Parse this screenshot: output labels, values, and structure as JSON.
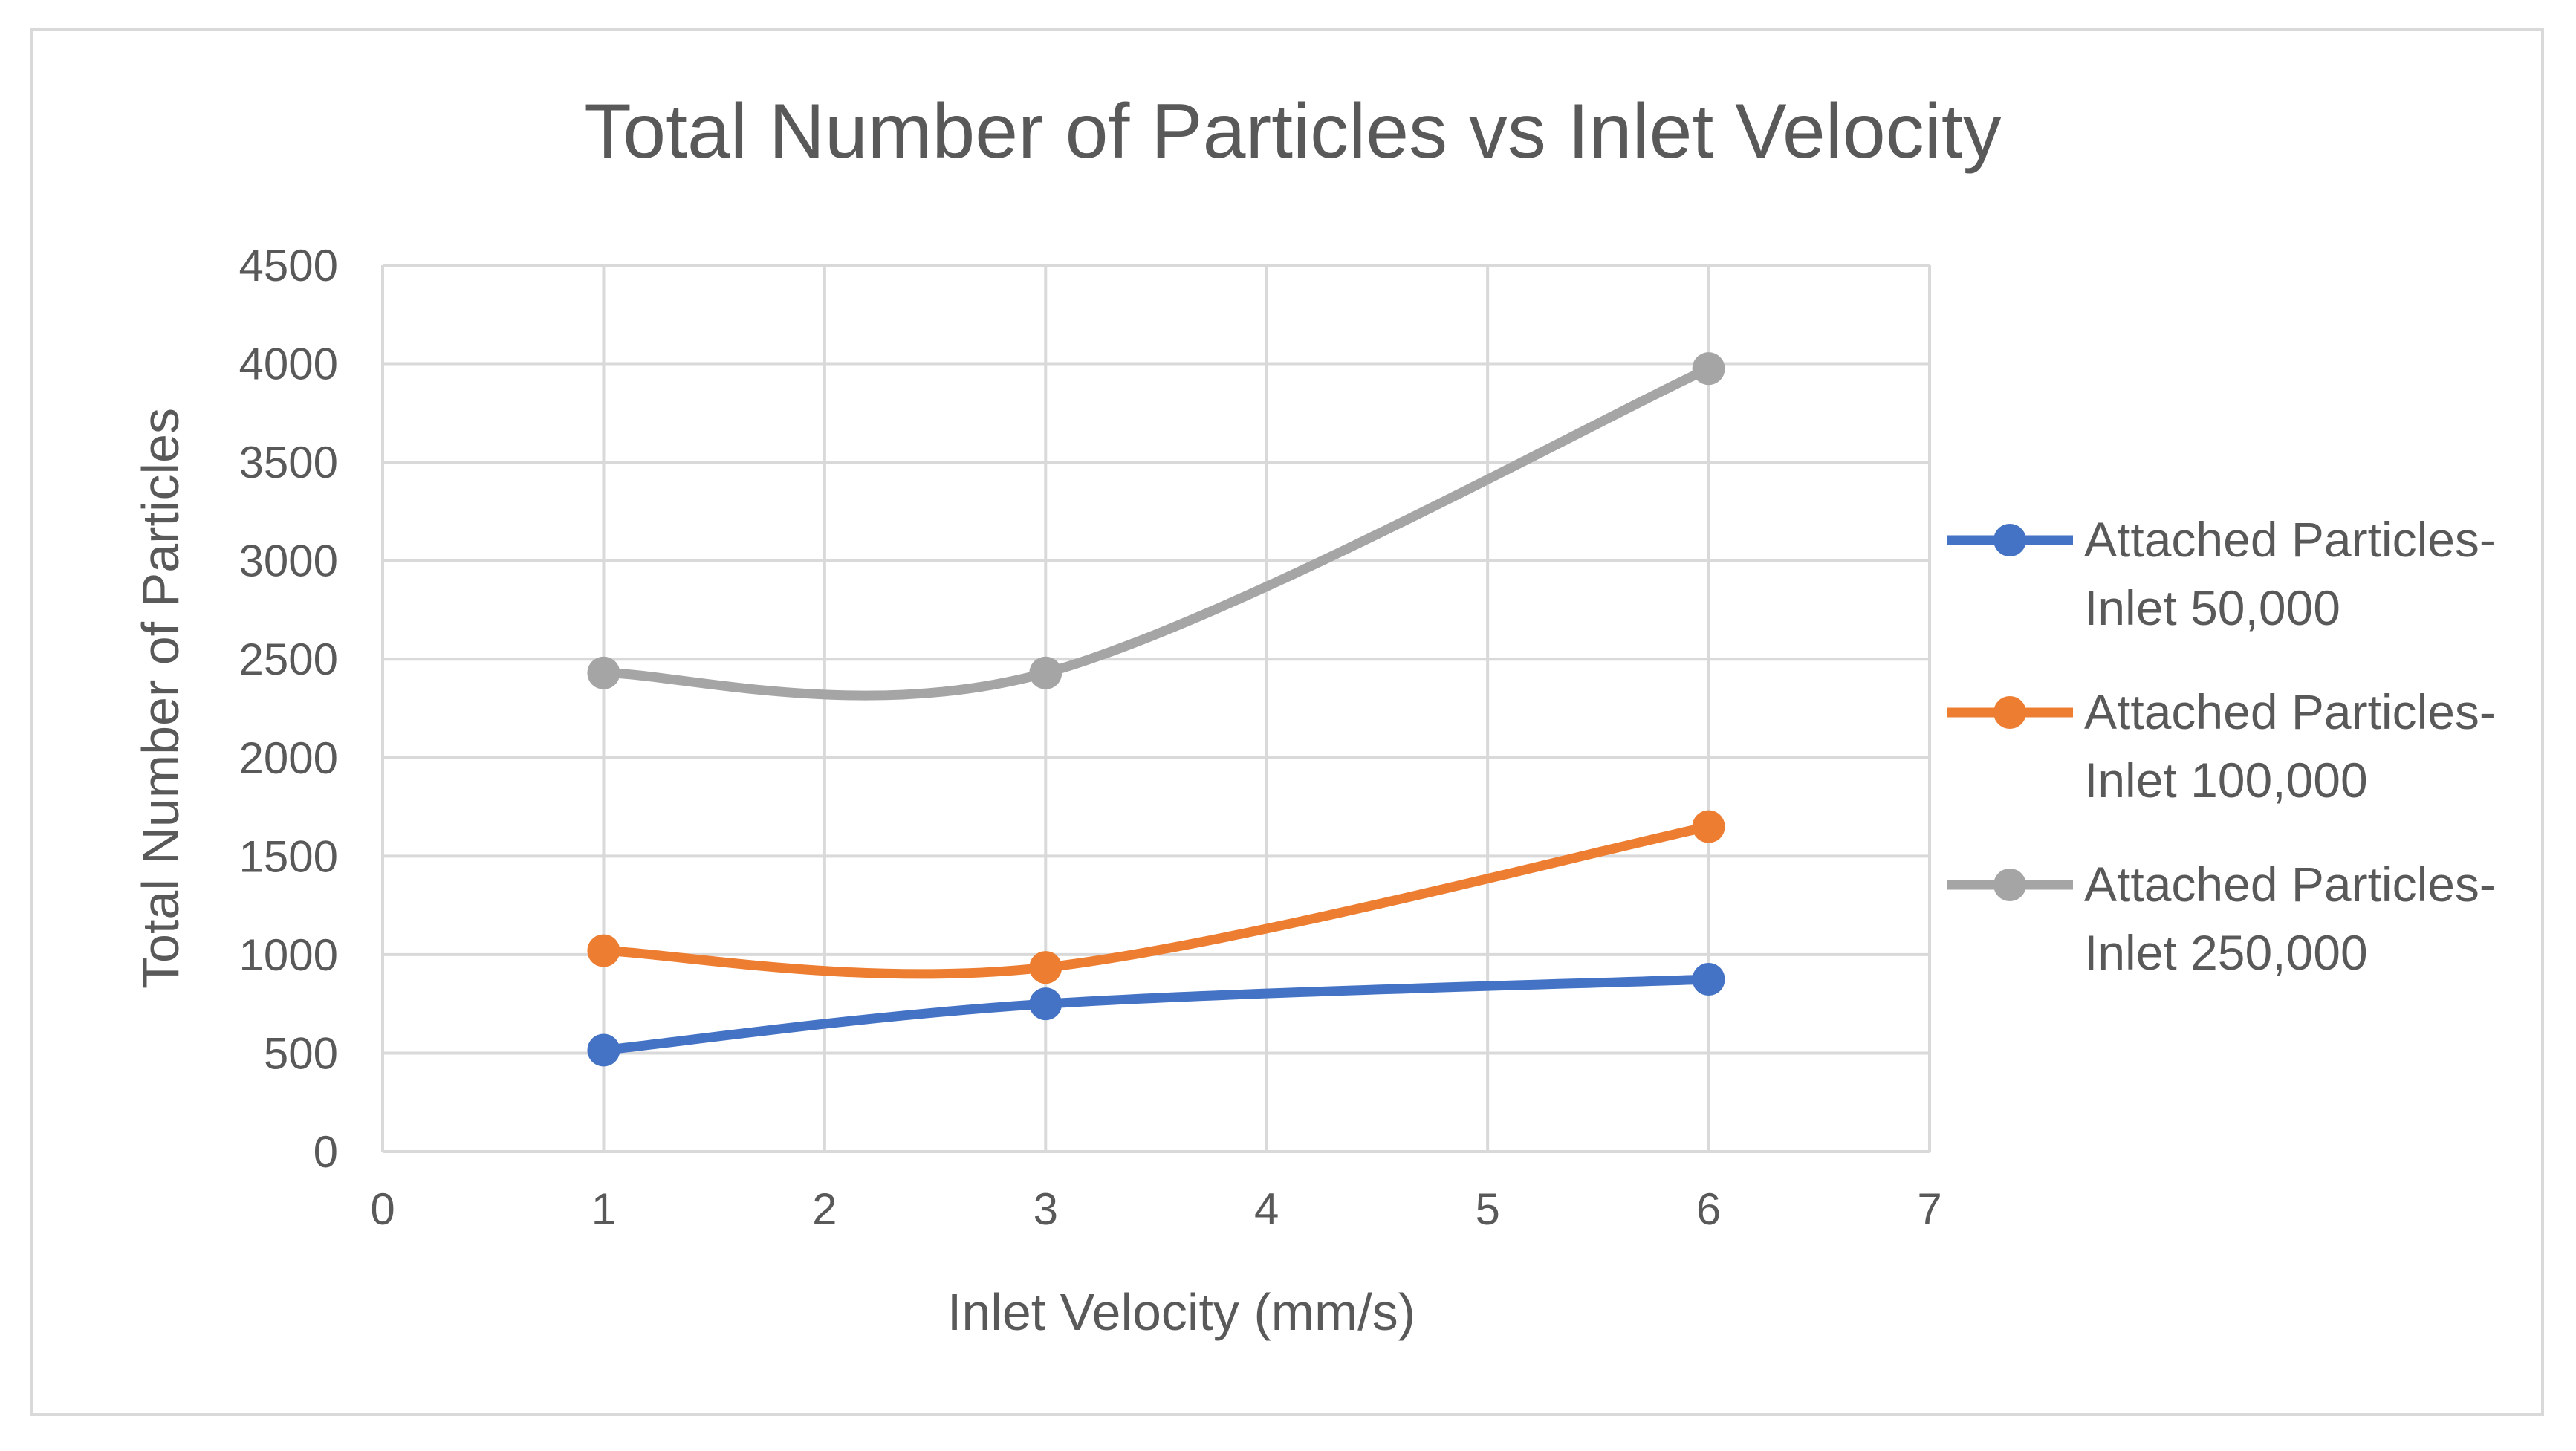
{
  "chart_data": {
    "type": "scatter",
    "title": "Total Number of Particles vs Inlet Velocity",
    "xlabel": "Inlet Velocity (mm/s)",
    "ylabel": "Total Number of Particles",
    "xlim": [
      0,
      7
    ],
    "ylim": [
      0,
      4500
    ],
    "x_ticks": [
      0,
      1,
      2,
      3,
      4,
      5,
      6,
      7
    ],
    "y_ticks": [
      0,
      500,
      1000,
      1500,
      2000,
      2500,
      3000,
      3500,
      4000,
      4500
    ],
    "grid": true,
    "smoothed_lines": true,
    "legend_position": "right",
    "series": [
      {
        "name": "Attached Particles-Inlet 50,000",
        "legend_lines": [
          "Attached Particles-",
          "Inlet 50,000"
        ],
        "color": "#4472c4",
        "x": [
          1,
          3,
          6
        ],
        "y": [
          515,
          750,
          875
        ]
      },
      {
        "name": "Attached Particles-Inlet 100,000",
        "legend_lines": [
          "Attached Particles-",
          "Inlet 100,000"
        ],
        "color": "#ed7d31",
        "x": [
          1,
          3,
          6
        ],
        "y": [
          1020,
          935,
          1650
        ]
      },
      {
        "name": "Attached Particles-Inlet 250,000",
        "legend_lines": [
          "Attached Particles-",
          "Inlet 250,000"
        ],
        "color": "#a5a5a5",
        "x": [
          1,
          3,
          6
        ],
        "y": [
          2430,
          2430,
          3975
        ]
      }
    ]
  }
}
